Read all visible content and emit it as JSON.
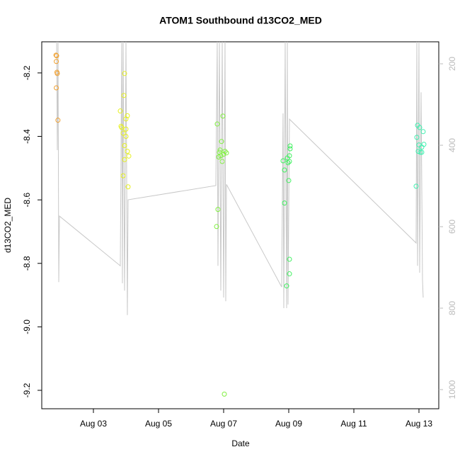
{
  "chart_data": {
    "type": "scatter",
    "title": "ATOM1 Southbound d13CO2_MED",
    "xlabel": "Date",
    "ylabel": "d13CO2_MED",
    "xlim": [
      1.413,
      13.609
    ],
    "ylim": [
      -9.258,
      -8.102
    ],
    "y2lim": [
      1047,
      146
    ],
    "xticks": [
      {
        "value": 3,
        "label": "Aug 03"
      },
      {
        "value": 5,
        "label": "Aug 05"
      },
      {
        "value": 7,
        "label": "Aug 07"
      },
      {
        "value": 9,
        "label": "Aug 09"
      },
      {
        "value": 11,
        "label": "Aug 11"
      },
      {
        "value": 13,
        "label": "Aug 13"
      }
    ],
    "yticks": [
      -9.2,
      {
        "value": -9,
        "label": "-9.0"
      },
      -8.8,
      -8.6,
      -8.4,
      -8.2
    ],
    "y2ticks": [
      200,
      400,
      600,
      800,
      1000
    ],
    "series": [
      {
        "type": "line",
        "axis": "y2",
        "color": "#c8c8c8",
        "x": [
          1.87,
          1.891,
          1.913,
          1.935,
          1.957,
          3.826,
          3.87,
          3.891,
          3.913,
          3.957,
          4.0,
          4.043,
          4.065,
          6.761,
          6.804,
          6.826,
          6.87,
          6.913,
          6.957,
          7.0,
          7.043,
          7.065,
          7.087,
          8.783,
          8.826,
          8.848,
          8.891,
          8.935,
          8.957,
          8.978,
          9.022,
          12.913,
          12.935,
          12.957,
          13.0,
          13.022,
          13.065,
          13.109,
          13.13
        ],
        "values": [
          146,
          412,
          146,
          736,
          574,
          696,
          146,
          739,
          146,
          757,
          146,
          817,
          534,
          499,
          146,
          696,
          146,
          757,
          146,
          774,
          146,
          783,
          496,
          748,
          322,
          800,
          146,
          800,
          146,
          791,
          336,
          640,
          146,
          696,
          146,
          713,
          270,
          730,
          774
        ]
      },
      {
        "color": "#f0a030",
        "x": [
          1.85,
          1.87,
          1.86,
          1.88,
          1.89,
          1.86,
          1.91
        ],
        "values": [
          -8.144,
          -8.146,
          -8.164,
          -8.198,
          -8.202,
          -8.247,
          -8.349
        ]
      },
      {
        "color": "#e6f020",
        "x": [
          3.957,
          3.826,
          3.935,
          3.848,
          3.87,
          4.0,
          4.043,
          3.913,
          4.0,
          3.957,
          4.043,
          4.087,
          3.957,
          3.913,
          4.065,
          4.0
        ],
        "values": [
          -8.202,
          -8.32,
          -8.271,
          -8.368,
          -8.372,
          -8.345,
          -8.335,
          -8.39,
          -8.4,
          -8.429,
          -8.447,
          -8.462,
          -8.473,
          -8.524,
          -8.559,
          -8.377
        ]
      },
      {
        "color": "#80f040",
        "x": [
          6.804,
          6.783,
          6.826,
          6.978,
          6.935,
          6.87,
          6.913,
          7.0,
          7.043,
          7.087,
          6.848,
          6.957,
          7.022,
          6.891
        ],
        "values": [
          -8.361,
          -8.684,
          -8.63,
          -8.336,
          -8.416,
          -8.45,
          -8.461,
          -8.456,
          -8.447,
          -8.452,
          -8.465,
          -8.479,
          -9.212,
          -8.443
        ]
      },
      {
        "color": "#40f060",
        "x": [
          8.826,
          8.87,
          8.87,
          8.935,
          9.022,
          8.978,
          9.0,
          9.022,
          9.022,
          9.022,
          9.043,
          9.043,
          8.957
        ],
        "values": [
          -8.477,
          -8.506,
          -8.61,
          -8.871,
          -8.479,
          -8.483,
          -8.539,
          -8.461,
          -8.787,
          -8.833,
          -8.439,
          -8.43,
          -8.468
        ]
      },
      {
        "color": "#40f0b0",
        "x": [
          12.957,
          12.935,
          12.913,
          13.022,
          13.087,
          13.087,
          13.13,
          12.978,
          13.043,
          13.152,
          13.0
        ],
        "values": [
          -8.365,
          -8.403,
          -8.557,
          -8.372,
          -8.434,
          -8.45,
          -8.385,
          -8.447,
          -8.45,
          -8.425,
          -8.427
        ]
      }
    ]
  }
}
